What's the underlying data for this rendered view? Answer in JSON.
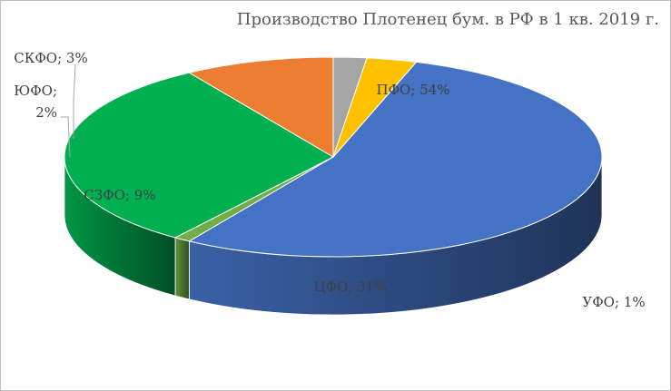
{
  "chart_data": {
    "type": "pie",
    "title": "Производство Плотенец бум. в РФ в 1 кв. 2019 г.",
    "slices": [
      {
        "category": "ПФО",
        "value": 54,
        "label": "ПФО; 54%",
        "color": "#4472C4"
      },
      {
        "category": "УФО",
        "value": 1,
        "label": "УФО; 1%",
        "color": "#70AD47"
      },
      {
        "category": "ЦФО",
        "value": 31,
        "label": "ЦФО; 31%",
        "color": "#00B050"
      },
      {
        "category": "СЗФО",
        "value": 9,
        "label": "СЗФО; 9%",
        "color": "#ED7D31"
      },
      {
        "category": "ЮФО",
        "value": 2,
        "label_lines": [
          "ЮФО;",
          "2%"
        ],
        "color": "#A5A5A5"
      },
      {
        "category": "СКФО",
        "value": 3,
        "label": "СКФО; 3%",
        "color": "#FFC000"
      }
    ],
    "legend": "none",
    "style": "3d"
  }
}
